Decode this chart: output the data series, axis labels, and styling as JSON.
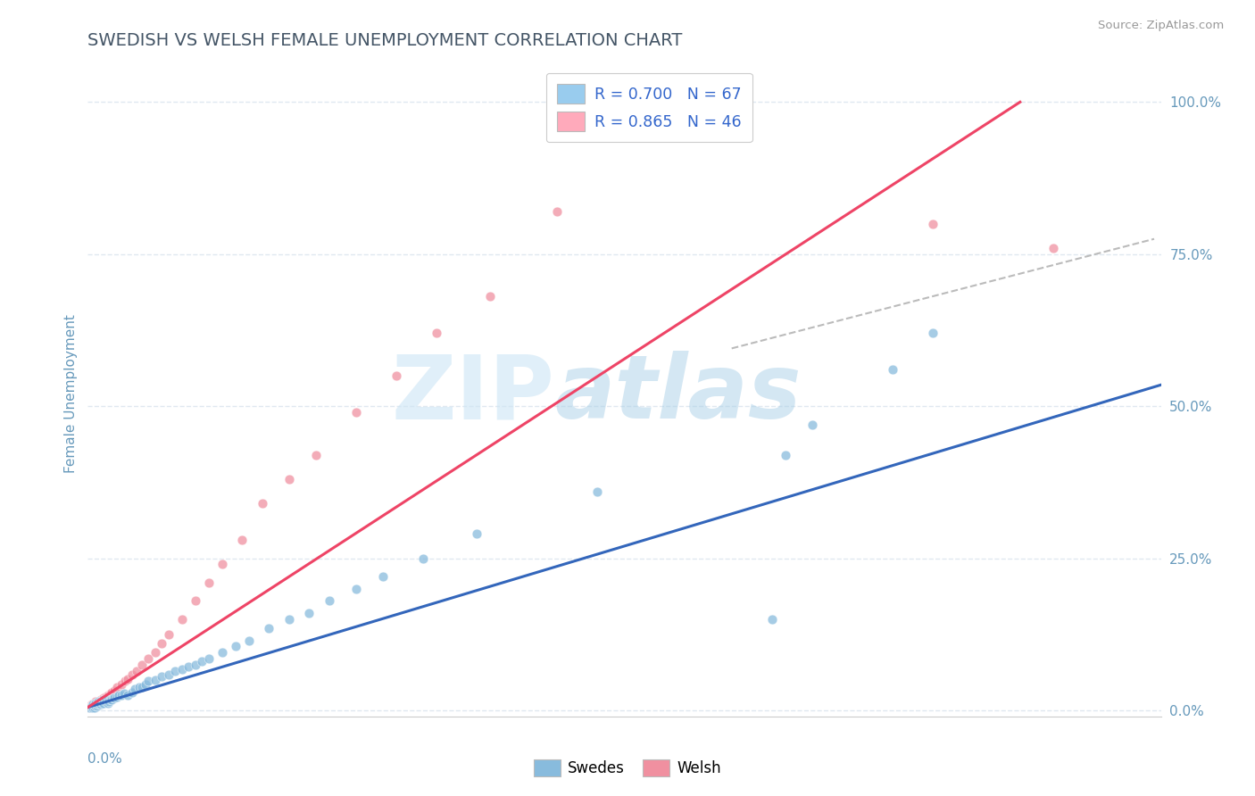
{
  "title": "SWEDISH VS WELSH FEMALE UNEMPLOYMENT CORRELATION CHART",
  "source_text": "Source: ZipAtlas.com",
  "xlabel_bottom_left": "0.0%",
  "ylabel": "Female Unemployment",
  "right_yticks": [
    "0.0%",
    "25.0%",
    "50.0%",
    "75.0%",
    "100.0%"
  ],
  "right_ytick_vals": [
    0.0,
    0.25,
    0.5,
    0.75,
    1.0
  ],
  "xmin": 0.0,
  "xmax": 0.8,
  "ymin": -0.01,
  "ymax": 1.05,
  "swedes_color": "#88bbdd",
  "welsh_color": "#f090a0",
  "swedes_line_color": "#3366bb",
  "welsh_line_color": "#ee4466",
  "ref_line_color": "#bbbbbb",
  "title_color": "#445566",
  "title_fontsize": 14,
  "axis_label_color": "#6699bb",
  "right_tick_color": "#6699bb",
  "grid_color": "#e0e8f0",
  "legend_label_1": "R = 0.700   N = 67",
  "legend_label_2": "R = 0.865   N = 46",
  "legend_patch_1": "#99ccee",
  "legend_patch_2": "#ffaabb",
  "bot_legend_label_1": "Swedes",
  "bot_legend_label_2": "Welsh",
  "swedes_line": [
    0.0,
    0.005,
    0.8,
    0.535
  ],
  "welsh_line": [
    0.0,
    0.005,
    0.695,
    1.0
  ],
  "ref_line": [
    0.48,
    0.595,
    0.795,
    0.775
  ],
  "swedes_scatter_x": [
    0.001,
    0.002,
    0.003,
    0.003,
    0.004,
    0.004,
    0.005,
    0.005,
    0.006,
    0.006,
    0.007,
    0.007,
    0.008,
    0.008,
    0.009,
    0.009,
    0.01,
    0.01,
    0.011,
    0.012,
    0.012,
    0.013,
    0.014,
    0.015,
    0.015,
    0.016,
    0.017,
    0.018,
    0.019,
    0.02,
    0.022,
    0.023,
    0.025,
    0.027,
    0.03,
    0.033,
    0.035,
    0.038,
    0.04,
    0.043,
    0.045,
    0.05,
    0.055,
    0.06,
    0.065,
    0.07,
    0.075,
    0.08,
    0.085,
    0.09,
    0.1,
    0.11,
    0.12,
    0.135,
    0.15,
    0.165,
    0.18,
    0.2,
    0.22,
    0.25,
    0.29,
    0.38,
    0.51,
    0.52,
    0.54,
    0.6,
    0.63
  ],
  "swedes_scatter_y": [
    0.005,
    0.005,
    0.005,
    0.008,
    0.005,
    0.01,
    0.005,
    0.01,
    0.008,
    0.012,
    0.008,
    0.012,
    0.01,
    0.015,
    0.01,
    0.015,
    0.01,
    0.015,
    0.012,
    0.012,
    0.018,
    0.015,
    0.018,
    0.012,
    0.018,
    0.015,
    0.018,
    0.018,
    0.02,
    0.02,
    0.022,
    0.025,
    0.025,
    0.028,
    0.025,
    0.03,
    0.035,
    0.038,
    0.038,
    0.042,
    0.048,
    0.05,
    0.055,
    0.058,
    0.065,
    0.068,
    0.072,
    0.075,
    0.08,
    0.085,
    0.095,
    0.105,
    0.115,
    0.135,
    0.15,
    0.16,
    0.18,
    0.2,
    0.22,
    0.25,
    0.29,
    0.36,
    0.15,
    0.42,
    0.47,
    0.56,
    0.62
  ],
  "welsh_scatter_x": [
    0.001,
    0.002,
    0.003,
    0.004,
    0.005,
    0.006,
    0.006,
    0.007,
    0.008,
    0.009,
    0.01,
    0.011,
    0.012,
    0.013,
    0.014,
    0.015,
    0.016,
    0.017,
    0.018,
    0.02,
    0.022,
    0.025,
    0.028,
    0.03,
    0.033,
    0.036,
    0.04,
    0.045,
    0.05,
    0.055,
    0.06,
    0.07,
    0.08,
    0.09,
    0.1,
    0.115,
    0.13,
    0.15,
    0.17,
    0.2,
    0.23,
    0.26,
    0.3,
    0.35,
    0.63,
    0.72
  ],
  "welsh_scatter_y": [
    0.005,
    0.008,
    0.01,
    0.01,
    0.012,
    0.01,
    0.015,
    0.012,
    0.015,
    0.015,
    0.018,
    0.018,
    0.02,
    0.022,
    0.022,
    0.025,
    0.025,
    0.028,
    0.03,
    0.032,
    0.038,
    0.042,
    0.048,
    0.052,
    0.058,
    0.065,
    0.075,
    0.085,
    0.095,
    0.11,
    0.125,
    0.15,
    0.18,
    0.21,
    0.24,
    0.28,
    0.34,
    0.38,
    0.42,
    0.49,
    0.55,
    0.62,
    0.68,
    0.82,
    0.8,
    0.76
  ]
}
